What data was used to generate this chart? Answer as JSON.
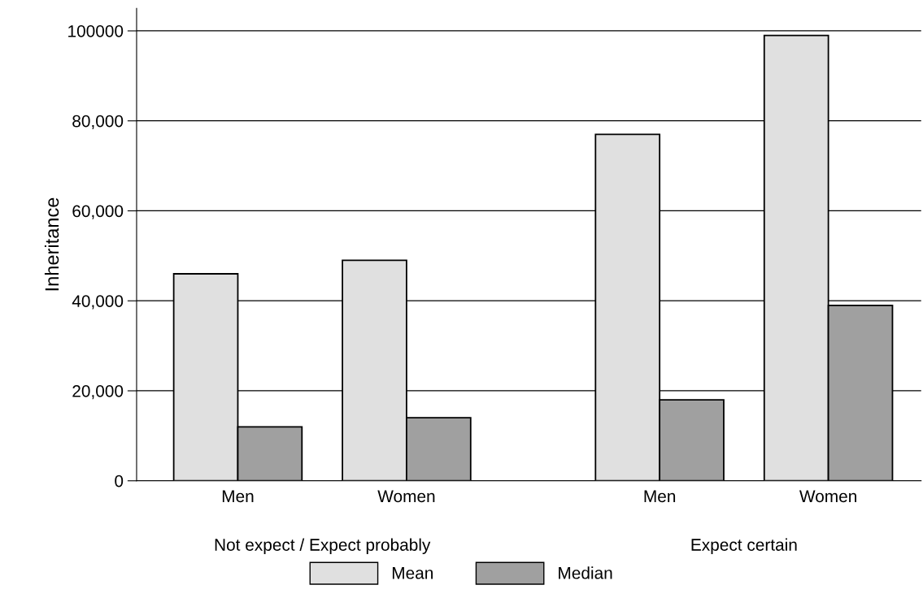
{
  "chart_data": {
    "type": "bar",
    "ylabel": "Inheritance",
    "categories": [
      "Men",
      "Women",
      "Men",
      "Women"
    ],
    "series": [
      {
        "name": "Mean",
        "color": "#e0e0e0",
        "values": [
          46000,
          49000,
          77000,
          99000
        ]
      },
      {
        "name": "Median",
        "color": "#a0a0a0",
        "values": [
          12000,
          14000,
          18000,
          39000
        ]
      }
    ],
    "annotations": [
      "Not expect / Expect probably",
      "Expect certain"
    ],
    "ylim": [
      0,
      105000
    ],
    "yticks": [
      0,
      {
        "value": 20000,
        "label": "20,000"
      },
      {
        "value": 40000,
        "label": "40,000"
      },
      {
        "value": 60000,
        "label": "60,000"
      },
      {
        "value": 80000,
        "label": "80,000"
      },
      100000
    ],
    "grid": "y",
    "legend": "bottom"
  }
}
